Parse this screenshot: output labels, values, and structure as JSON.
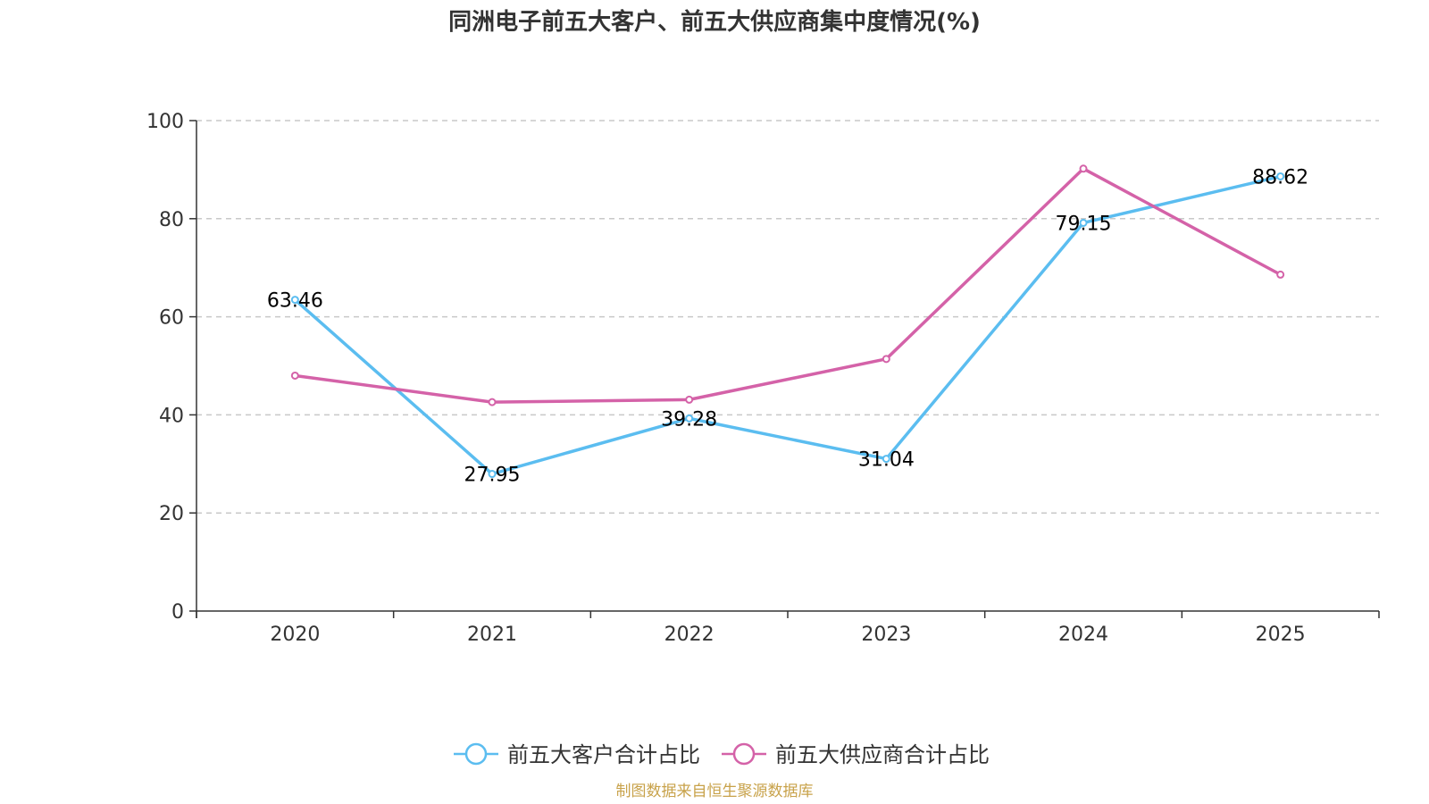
{
  "chart_data": {
    "type": "line",
    "title": "同洲电子前五大客户、前五大供应商集中度情况(%)",
    "categories": [
      "2020",
      "2021",
      "2022",
      "2023",
      "2024",
      "2025"
    ],
    "ylim": [
      0,
      100
    ],
    "yticks": [
      0,
      20,
      40,
      60,
      80,
      100
    ],
    "grid": true,
    "legend_position": "bottom",
    "series": [
      {
        "name": "前五大客户合计占比",
        "color": "#5bbdf0",
        "values": [
          63.46,
          27.95,
          39.28,
          31.04,
          79.15,
          88.62
        ],
        "labels": [
          "63.46",
          "27.95",
          "39.28",
          "31.04",
          "79.15",
          "88.62"
        ]
      },
      {
        "name": "前五大供应商合计占比",
        "color": "#d462a8",
        "values": [
          48.0,
          42.6,
          43.1,
          51.4,
          90.2,
          68.6
        ]
      }
    ]
  },
  "source": "制图数据来自恒生聚源数据库"
}
